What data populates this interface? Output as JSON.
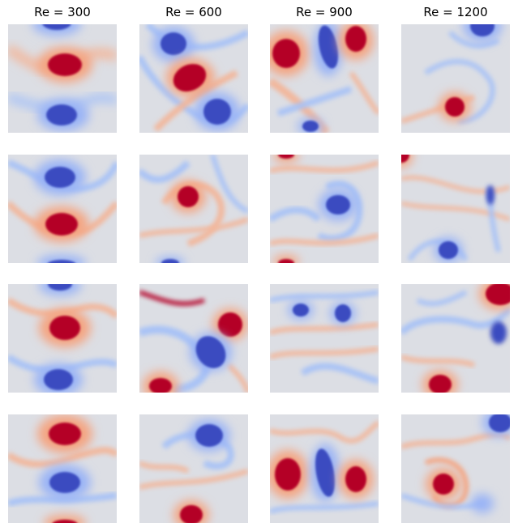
{
  "columns": [
    "Re = 300",
    "Re = 600",
    "Re = 900",
    "Re = 1200"
  ],
  "colors": {
    "background": "#dcdee4",
    "positive_core": "#b40426",
    "positive_halo": "#f4a582",
    "negative_core": "#3b4cc0",
    "negative_halo": "#9ab4f6"
  }
}
